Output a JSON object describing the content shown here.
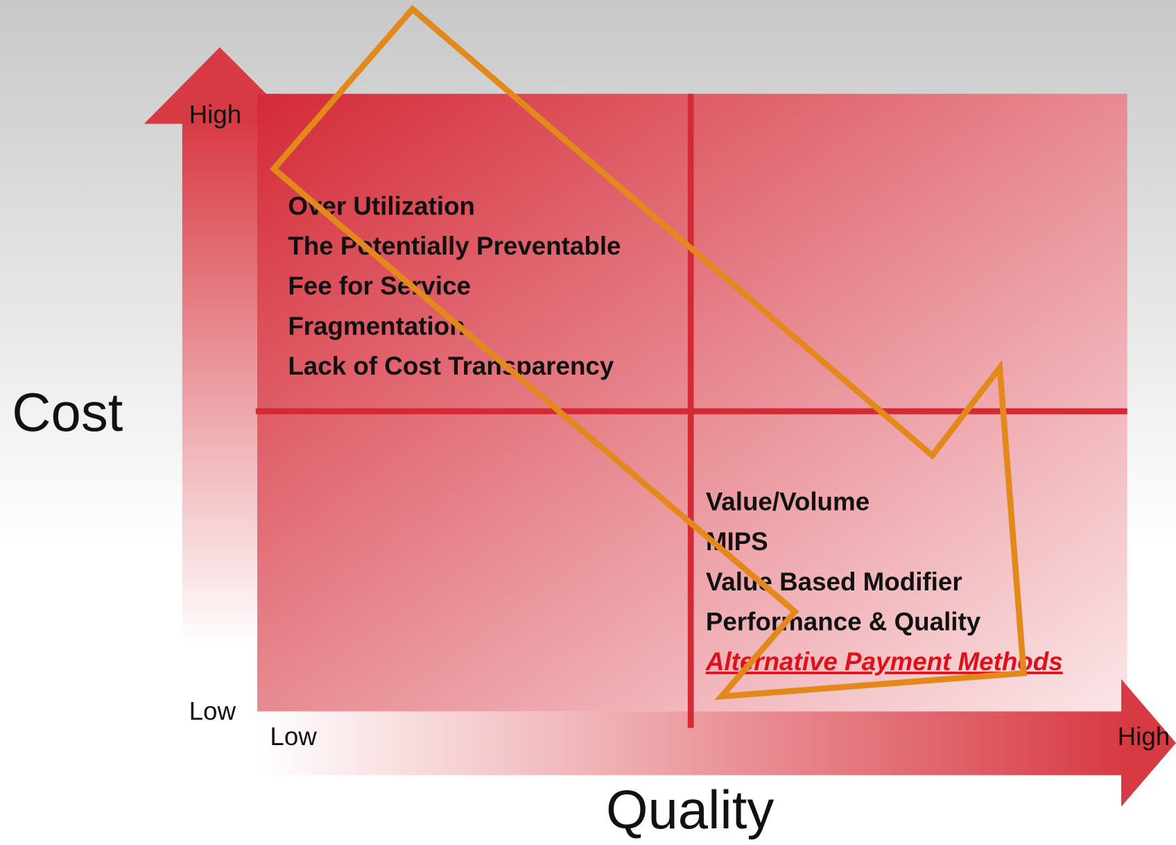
{
  "y_axis": {
    "title": "Cost",
    "high": "High",
    "low": "Low"
  },
  "x_axis": {
    "title": "Quality",
    "low": "Low",
    "high": "High"
  },
  "quadrants": {
    "top_left": {
      "items": [
        "Over Utilization",
        "The Potentially Preventable",
        "Fee for Service",
        "Fragmentation",
        "Lack of Cost Transparency"
      ]
    },
    "bottom_right": {
      "items": [
        "Value/Volume",
        "MIPS",
        "Value Based Modifier",
        "Performance & Quality"
      ],
      "emphasized": "Alternative Payment Methods"
    }
  }
}
